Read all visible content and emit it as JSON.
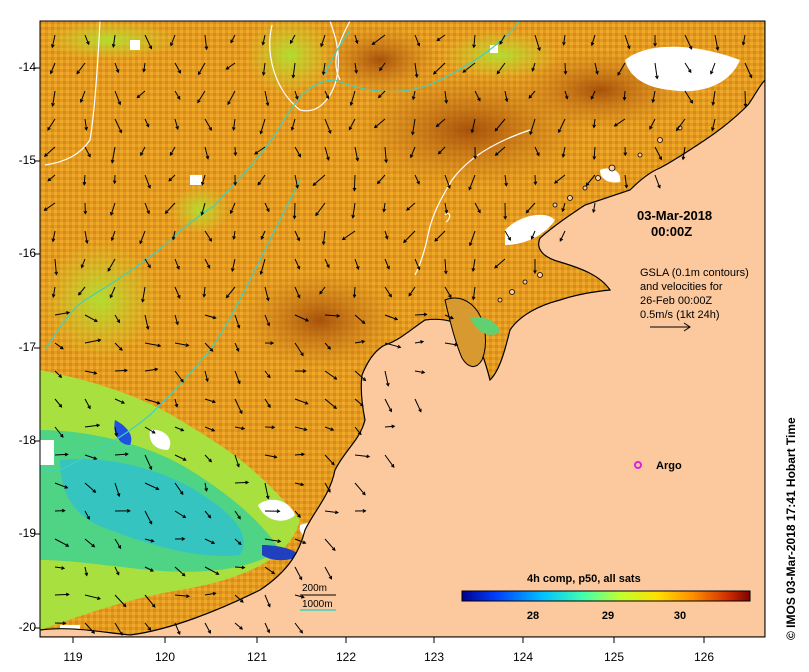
{
  "figure": {
    "date_line1": "03-Mar-2018",
    "date_line2": "00:00Z",
    "gsla_lines": [
      "GSLA (0.1m contours)",
      "and velocities for",
      "26-Feb 00:00Z",
      "0.5m/s (1kt 24h)"
    ],
    "argo_label": "Argo",
    "legend_200": "200m",
    "legend_1000": "1000m",
    "colorbar_title": "4h comp, p50, all sats",
    "colorbar_ticks": [
      "28",
      "29",
      "30"
    ],
    "credit": "© IMOS 03-Mar-2018 17:41 Hobart Time"
  },
  "axes": {
    "x_ticks": [
      "119",
      "120",
      "121",
      "122",
      "123",
      "124",
      "125",
      "126"
    ],
    "y_ticks": [
      "-14",
      "-15",
      "-16",
      "-17",
      "-18",
      "-19",
      "-20"
    ]
  },
  "colors": {
    "land": "#fcc99e",
    "sst_warm": "#e8a020",
    "sst_hot": "#b85a10",
    "sst_mid": "#c8e030",
    "sst_cool": "#40c0c0",
    "isobath": "#40d0c0",
    "argo_marker": "#e020e0"
  },
  "colorbar": {
    "palette": "jet",
    "range_note": "SST colour scale"
  }
}
